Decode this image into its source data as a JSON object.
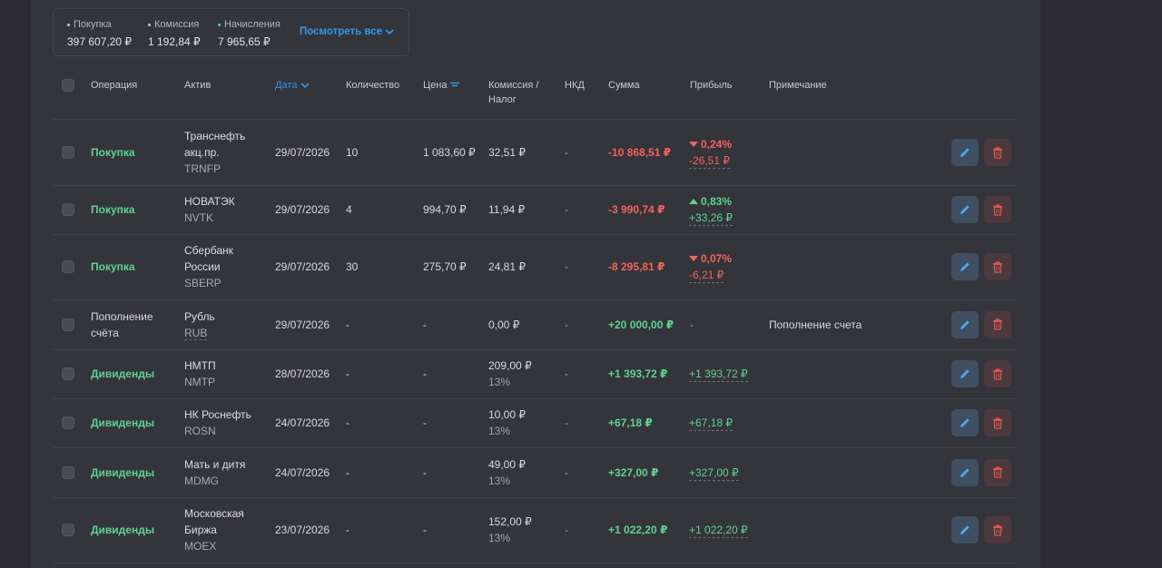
{
  "summary": [
    {
      "label": "Покупка",
      "value": "397 607,20 ₽",
      "dot": "#c9cad0"
    },
    {
      "label": "Комиссия",
      "value": "1 192,84 ₽",
      "dot": "#c9cad0"
    },
    {
      "label": "Начисления",
      "value": "7 965,65 ₽",
      "dot": "#5ed28f"
    }
  ],
  "view_all_label": "Посмотреть все",
  "columns": {
    "operation": "Операция",
    "asset": "Актив",
    "date": "Дата",
    "quantity": "Количество",
    "price": "Цена",
    "commission_1": "Комиссия /",
    "commission_2": "Налог",
    "nkd": "НКД",
    "sum": "Сумма",
    "profit": "Прибыль",
    "note": "Примечание"
  },
  "rows": [
    {
      "operation_lines": [
        "Покупка"
      ],
      "op_style": "green",
      "asset_lines": [
        "Транснефть",
        "акц.пр."
      ],
      "ticker": "TRNFP",
      "date": "29/07/2026",
      "quantity": "10",
      "price": "1 083,60 ₽",
      "commission": "32,51 ₽",
      "commission_sub": "",
      "nkd": "-",
      "sum": "-10 868,51 ₽",
      "sum_color": "red",
      "profit_dir": "down",
      "profit_pct": "0,24%",
      "profit_abs": "-26,51 ₽",
      "profit_plain": "",
      "note": ""
    },
    {
      "operation_lines": [
        "Покупка"
      ],
      "op_style": "green",
      "asset_lines": [
        "НОВАТЭК"
      ],
      "ticker": "NVTK",
      "date": "29/07/2026",
      "quantity": "4",
      "price": "994,70 ₽",
      "commission": "11,94 ₽",
      "commission_sub": "",
      "nkd": "-",
      "sum": "-3 990,74 ₽",
      "sum_color": "red",
      "profit_dir": "up",
      "profit_pct": "0,83%",
      "profit_abs": "+33,26 ₽",
      "profit_plain": "",
      "note": ""
    },
    {
      "operation_lines": [
        "Покупка"
      ],
      "op_style": "green",
      "asset_lines": [
        "Сбербанк",
        "России"
      ],
      "ticker": "SBERP",
      "date": "29/07/2026",
      "quantity": "30",
      "price": "275,70 ₽",
      "commission": "24,81 ₽",
      "commission_sub": "",
      "nkd": "-",
      "sum": "-8 295,81 ₽",
      "sum_color": "red",
      "profit_dir": "down",
      "profit_pct": "0,07%",
      "profit_abs": "-6,21 ₽",
      "profit_plain": "",
      "note": ""
    },
    {
      "operation_lines": [
        "Пополнение",
        "счёта"
      ],
      "op_style": "plain",
      "asset_lines": [
        "Рубль"
      ],
      "ticker": "RUB",
      "date": "29/07/2026",
      "quantity": "-",
      "price": "-",
      "commission": "0,00 ₽",
      "commission_sub": "",
      "nkd": "-",
      "sum": "+20 000,00 ₽",
      "sum_color": "green",
      "profit_dir": "",
      "profit_pct": "",
      "profit_abs": "",
      "profit_plain": "-",
      "note": "Пополнение счета"
    },
    {
      "operation_lines": [
        "Дивиденды"
      ],
      "op_style": "green",
      "asset_lines": [
        "НМТП"
      ],
      "ticker": "NMTP",
      "date": "28/07/2026",
      "quantity": "-",
      "price": "-",
      "commission": "209,00 ₽",
      "commission_sub": "13%",
      "nkd": "-",
      "sum": "+1 393,72 ₽",
      "sum_color": "green",
      "profit_dir": "",
      "profit_pct": "",
      "profit_abs": "+1 393,72 ₽",
      "profit_plain": "",
      "note": ""
    },
    {
      "operation_lines": [
        "Дивиденды"
      ],
      "op_style": "green",
      "asset_lines": [
        "НК Роснефть"
      ],
      "ticker": "ROSN",
      "date": "24/07/2026",
      "quantity": "-",
      "price": "-",
      "commission": "10,00 ₽",
      "commission_sub": "13%",
      "nkd": "-",
      "sum": "+67,18 ₽",
      "sum_color": "green",
      "profit_dir": "",
      "profit_pct": "",
      "profit_abs": "+67,18 ₽",
      "profit_plain": "",
      "note": ""
    },
    {
      "operation_lines": [
        "Дивиденды"
      ],
      "op_style": "green",
      "asset_lines": [
        "Мать и дитя"
      ],
      "ticker": "MDMG",
      "date": "24/07/2026",
      "quantity": "-",
      "price": "-",
      "commission": "49,00 ₽",
      "commission_sub": "13%",
      "nkd": "-",
      "sum": "+327,00 ₽",
      "sum_color": "green",
      "profit_dir": "",
      "profit_pct": "",
      "profit_abs": "+327,00 ₽",
      "profit_plain": "",
      "note": ""
    },
    {
      "operation_lines": [
        "Дивиденды"
      ],
      "op_style": "green",
      "asset_lines": [
        "Московская",
        "Биржа"
      ],
      "ticker": "MOEX",
      "date": "23/07/2026",
      "quantity": "-",
      "price": "-",
      "commission": "152,00 ₽",
      "commission_sub": "13%",
      "nkd": "-",
      "sum": "+1 022,20 ₽",
      "sum_color": "green",
      "profit_dir": "",
      "profit_pct": "",
      "profit_abs": "+1 022,20 ₽",
      "profit_plain": "",
      "note": ""
    }
  ],
  "colors": {
    "background": "#2b2b31",
    "panel": "#34343b",
    "accent": "#2f9ae6",
    "positive": "#5ed28f",
    "negative": "#f0645a"
  },
  "icons": {
    "edit": "pencil-icon",
    "delete": "trash-icon",
    "sort_date": "chevron-down-icon",
    "filter_price": "filter-icon",
    "view_all": "chevron-down-icon"
  }
}
